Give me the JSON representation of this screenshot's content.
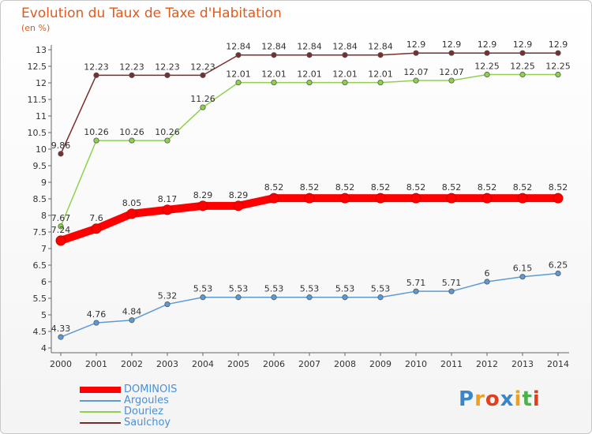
{
  "title": "Evolution du Taux de Taxe d'Habitation",
  "subtitle": "(en %)",
  "brand": {
    "text": "Proxiti",
    "letters": [
      "P",
      "r",
      "o",
      "x",
      "i",
      "t",
      "i"
    ],
    "colors": [
      "#3a86c8",
      "#f0a020",
      "#e04020",
      "#3a86c8",
      "#f0a020",
      "#4caf50",
      "#e04020"
    ]
  },
  "chart_data": {
    "type": "line",
    "x": [
      "2000",
      "2001",
      "2002",
      "2003",
      "2004",
      "2005",
      "2006",
      "2007",
      "2008",
      "2009",
      "2010",
      "2011",
      "2012",
      "2013",
      "2014"
    ],
    "ylim": [
      4,
      13
    ],
    "y_ticks": [
      "4",
      "4.5",
      "5",
      "5.5",
      "6",
      "6.5",
      "7",
      "7.5",
      "8",
      "8.5",
      "9",
      "9.5",
      "10",
      "10.5",
      "11",
      "11.5",
      "12",
      "12.5",
      "13"
    ],
    "grid": false,
    "legend_position": "bottom-left",
    "series": [
      {
        "name": "DOMINOIS",
        "color": "#ff0000",
        "values": [
          7.24,
          7.6,
          8.05,
          8.17,
          8.29,
          8.29,
          8.52,
          8.52,
          8.52,
          8.52,
          8.52,
          8.52,
          8.52,
          8.52,
          8.52
        ],
        "labels": [
          "7.24",
          "7.6",
          "8.05",
          "8.17",
          "8.29",
          "8.29",
          "8.52",
          "8.52",
          "8.52",
          "8.52",
          "8.52",
          "8.52",
          "8.52",
          "8.52",
          "8.52"
        ]
      },
      {
        "name": "Argoules",
        "color": "#5b9bd5",
        "values": [
          4.33,
          4.76,
          4.84,
          5.32,
          5.53,
          5.53,
          5.53,
          5.53,
          5.53,
          5.53,
          5.71,
          5.71,
          6,
          6.15,
          6.25
        ],
        "labels": [
          "4.33",
          "4.76",
          "4.84",
          "5.32",
          "5.53",
          "5.53",
          "5.53",
          "5.53",
          "5.53",
          "5.53",
          "5.71",
          "5.71",
          "6",
          "6.15",
          "6.25"
        ]
      },
      {
        "name": "Douriez",
        "color": "#8fd14f",
        "values": [
          7.67,
          10.26,
          10.26,
          10.26,
          11.26,
          12.01,
          12.01,
          12.01,
          12.01,
          12.01,
          12.07,
          12.07,
          12.25,
          12.25,
          12.25
        ],
        "labels": [
          "7.67",
          "10.26",
          "10.26",
          "10.26",
          "11.26",
          "12.01",
          "12.01",
          "12.01",
          "12.01",
          "12.01",
          "12.07",
          "12.07",
          "12.25",
          "12.25",
          "12.25"
        ]
      },
      {
        "name": "Saulchoy",
        "color": "#7b2d2d",
        "values": [
          9.86,
          12.23,
          12.23,
          12.23,
          12.23,
          12.84,
          12.84,
          12.84,
          12.84,
          12.84,
          12.9,
          12.9,
          12.9,
          12.9,
          12.9
        ],
        "labels": [
          "9.86",
          "12.23",
          "12.23",
          "12.23",
          "12.23",
          "12.84",
          "12.84",
          "12.84",
          "12.84",
          "12.84",
          "12.9",
          "12.9",
          "12.9",
          "12.9",
          "12.9"
        ]
      }
    ]
  }
}
